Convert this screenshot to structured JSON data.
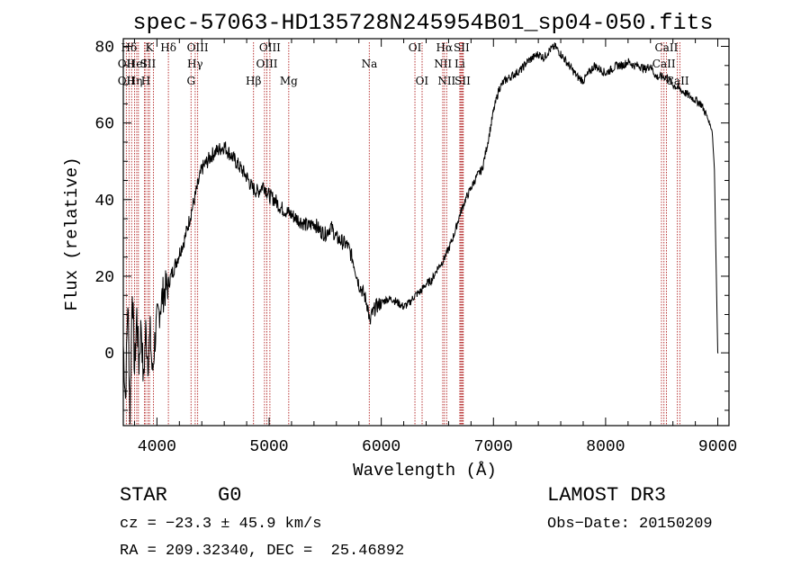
{
  "chart_data": {
    "type": "line",
    "title": "spec-57063-HD135728N245954B01_sp04-050.fits",
    "xlabel": "Wavelength (Å)",
    "ylabel": "Flux (relative)",
    "xlim": [
      3700,
      9100
    ],
    "ylim": [
      -19,
      82
    ],
    "x_ticks": [
      4000,
      5000,
      6000,
      7000,
      8000,
      9000
    ],
    "y_ticks": [
      0,
      20,
      40,
      60,
      80
    ],
    "line_color": "#000000",
    "marker_color": "#b22222",
    "series": [
      {
        "name": "spectrum",
        "x": [
          3700,
          3720,
          3740,
          3760,
          3780,
          3800,
          3820,
          3840,
          3860,
          3880,
          3900,
          3920,
          3940,
          3960,
          3980,
          4000,
          4050,
          4100,
          4150,
          4200,
          4250,
          4300,
          4350,
          4400,
          4450,
          4500,
          4550,
          4600,
          4650,
          4700,
          4750,
          4800,
          4850,
          4900,
          4950,
          5000,
          5050,
          5100,
          5150,
          5200,
          5250,
          5300,
          5350,
          5400,
          5450,
          5500,
          5550,
          5600,
          5650,
          5700,
          5750,
          5800,
          5850,
          5880,
          5900,
          5910,
          5920,
          5950,
          6000,
          6050,
          6100,
          6150,
          6200,
          6250,
          6300,
          6350,
          6400,
          6450,
          6500,
          6550,
          6600,
          6650,
          6700,
          6750,
          6800,
          6850,
          6900,
          6950,
          7000,
          7050,
          7100,
          7150,
          7200,
          7250,
          7300,
          7350,
          7400,
          7450,
          7500,
          7550,
          7600,
          7650,
          7700,
          7750,
          7800,
          7850,
          7900,
          7950,
          8000,
          8050,
          8100,
          8150,
          8200,
          8250,
          8300,
          8350,
          8400,
          8450,
          8500,
          8550,
          8600,
          8650,
          8700,
          8750,
          8800,
          8850,
          8900,
          8950,
          8970,
          8990,
          9000,
          9005
        ],
        "y": [
          2,
          -12,
          14,
          -16,
          18,
          -5,
          10,
          -3,
          8,
          -8,
          6,
          -2,
          5,
          -6,
          3,
          8,
          15,
          18,
          22,
          26,
          30,
          36,
          42,
          48,
          50,
          52,
          53,
          54,
          52,
          50,
          48,
          46,
          43,
          42,
          44,
          41,
          40,
          38,
          37,
          36,
          35,
          34,
          33,
          34,
          32,
          31,
          33,
          30,
          29,
          28,
          24,
          18,
          15,
          12,
          7,
          10,
          10,
          12,
          13,
          14,
          14,
          13,
          12,
          13,
          15,
          16,
          18,
          19,
          22,
          24,
          27,
          31,
          36,
          40,
          43,
          46,
          48,
          55,
          63,
          69,
          71,
          72,
          73,
          74,
          76,
          77,
          78,
          77,
          79,
          80,
          78,
          76,
          74,
          72,
          71,
          73,
          75,
          74,
          73,
          74,
          75,
          75,
          76,
          75,
          75,
          74,
          75,
          72,
          72,
          72,
          70,
          69,
          68,
          67,
          66,
          65,
          62,
          58,
          48,
          15,
          0,
          0
        ]
      }
    ],
    "lines": [
      {
        "x": 3751,
        "label": "Hδ",
        "row": 0
      },
      {
        "x": 3774,
        "label": "",
        "row": 0
      },
      {
        "x": 3835,
        "label": "",
        "row": 0
      },
      {
        "x": 3889,
        "label": "",
        "row": 0
      },
      {
        "x": 3934,
        "label": "K",
        "row": 0
      },
      {
        "x": 3969,
        "label": "",
        "row": 0
      },
      {
        "x": 4102,
        "label": "Hδ",
        "row": 0
      },
      {
        "x": 4304,
        "label": "",
        "row": 0
      },
      {
        "x": 4341,
        "label": "",
        "row": 0
      },
      {
        "x": 4363,
        "label": "OIII",
        "row": 0
      },
      {
        "x": 4861,
        "label": "",
        "row": 0
      },
      {
        "x": 4959,
        "label": "",
        "row": 0
      },
      {
        "x": 5007,
        "label": "OIII",
        "row": 0
      },
      {
        "x": 5175,
        "label": "",
        "row": 0
      },
      {
        "x": 5893,
        "label": "",
        "row": 0
      },
      {
        "x": 6300,
        "label": "OI",
        "row": 0
      },
      {
        "x": 6364,
        "label": "",
        "row": 0
      },
      {
        "x": 6548,
        "label": "",
        "row": 0
      },
      {
        "x": 6563,
        "label": "Hα",
        "row": 0
      },
      {
        "x": 6583,
        "label": "",
        "row": 0
      },
      {
        "x": 6708,
        "label": "",
        "row": 0
      },
      {
        "x": 6716,
        "label": "SII",
        "row": 0
      },
      {
        "x": 6731,
        "label": "",
        "row": 0
      },
      {
        "x": 8498,
        "label": "",
        "row": 0
      },
      {
        "x": 8542,
        "label": "CaII",
        "row": 0
      },
      {
        "x": 8662,
        "label": "",
        "row": 0
      },
      {
        "x": 3727,
        "label": "OII",
        "row": 1
      },
      {
        "x": 3820,
        "label": "HeI",
        "row": 1
      },
      {
        "x": 3920,
        "label": "SII",
        "row": 1
      },
      {
        "x": 4340,
        "label": "Hγ",
        "row": 1
      },
      {
        "x": 4980,
        "label": "OIII",
        "row": 1
      },
      {
        "x": 5894,
        "label": "Na",
        "row": 1
      },
      {
        "x": 6550,
        "label": "NII",
        "row": 1
      },
      {
        "x": 6700,
        "label": "Li",
        "row": 1
      },
      {
        "x": 8520,
        "label": "CaII",
        "row": 1
      },
      {
        "x": 3727,
        "label": "OII",
        "row": 2
      },
      {
        "x": 3800,
        "label": "Hη",
        "row": 2
      },
      {
        "x": 3900,
        "label": "H",
        "row": 2
      },
      {
        "x": 4304,
        "label": "G",
        "row": 2
      },
      {
        "x": 4861,
        "label": "Hβ",
        "row": 2
      },
      {
        "x": 5175,
        "label": "Mg",
        "row": 2
      },
      {
        "x": 6363,
        "label": "OI",
        "row": 2
      },
      {
        "x": 6583,
        "label": "NII",
        "row": 2
      },
      {
        "x": 6725,
        "label": "SII",
        "row": 2
      },
      {
        "x": 8640,
        "label": "CaII",
        "row": 2
      }
    ]
  },
  "footer": {
    "class_label": "STAR",
    "subclass": "G0",
    "survey": "LAMOST DR3",
    "cz": "cz = −23.3 ± 45.9 km/s",
    "obs_date": "Obs−Date: 20150209",
    "coords": "RA = 209.32340, DEC =  25.46892"
  }
}
